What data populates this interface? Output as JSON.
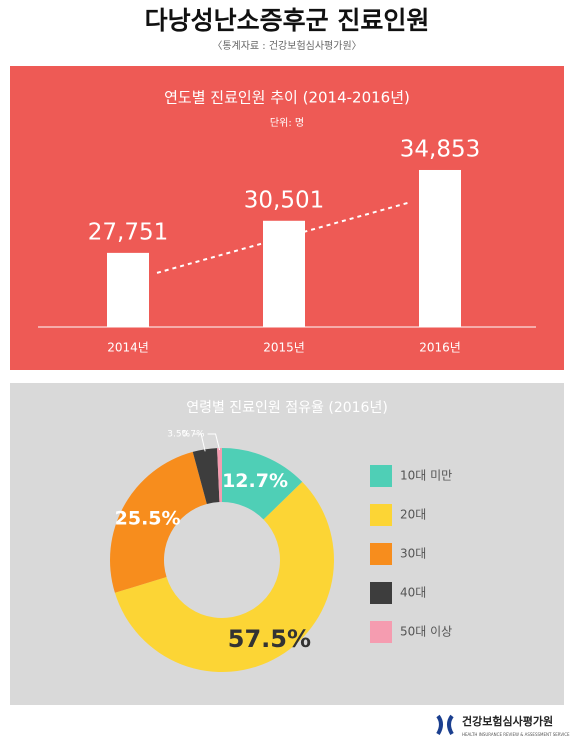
{
  "header": {
    "title": "다낭성난소증후군 진료인원",
    "source": "〈통계자료 : 건강보험심사평가원〉"
  },
  "chart_data": [
    {
      "type": "bar",
      "title": "연도별 진료인원 추이 (2014-2016년)",
      "subtitle": "단위: 명",
      "categories": [
        "2014년",
        "2015년",
        "2016년"
      ],
      "values": [
        27751,
        30501,
        34853
      ],
      "value_labels": [
        "27,751",
        "30,501",
        "34,853"
      ],
      "color": "#ffffff",
      "ylim": [
        21400,
        36000
      ]
    },
    {
      "type": "pie",
      "title": "연령별 진료인원 점유율 (2016년)",
      "categories": [
        "10대 미만",
        "20대",
        "30대",
        "40대",
        "50대 이상"
      ],
      "values": [
        12.7,
        57.5,
        25.5,
        3.5,
        0.7
      ],
      "value_labels": [
        "12.7%",
        "57.5%",
        "25.5%",
        "3.5%",
        "0.7%"
      ],
      "colors": [
        "#4fcfb6",
        "#fcd535",
        "#f78d1d",
        "#3d3d3d",
        "#f59cb0"
      ]
    }
  ],
  "footer": {
    "org": "건강보험심사평가원",
    "org_en": "HEALTH INSURANCE REVIEW & ASSESSMENT SERVICE"
  }
}
